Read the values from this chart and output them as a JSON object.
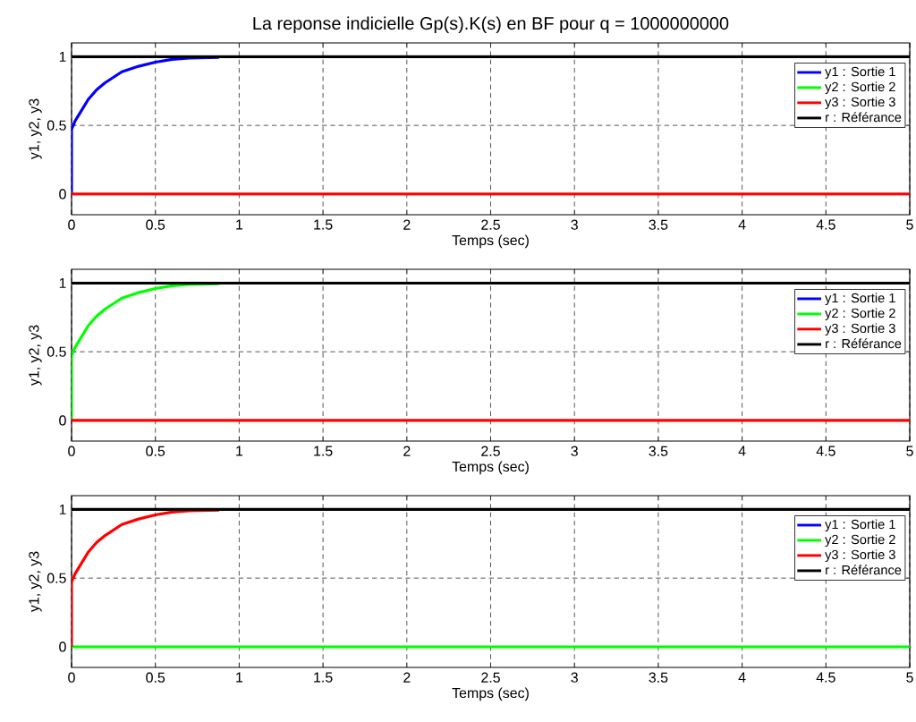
{
  "chart_data": [
    {
      "type": "line",
      "title": "La reponse indicielle Gp(s).K(s) en BF pour q = 1000000000",
      "xlabel": "Temps (sec)",
      "ylabel": "y1, y2, y3",
      "xlim": [
        0,
        5
      ],
      "ylim": [
        -0.15,
        1.1
      ],
      "xticks": [
        0,
        0.5,
        1,
        1.5,
        2,
        2.5,
        3,
        3.5,
        4,
        4.5,
        5
      ],
      "yticks": [
        0,
        0.5,
        1
      ],
      "grid": true,
      "legend": "top right",
      "series": [
        {
          "name": "y1 : Sortie 1",
          "color": "#0000ff",
          "x": [
            0,
            0,
            0.02,
            0.05,
            0.1,
            0.15,
            0.2,
            0.3,
            0.4,
            0.5,
            0.6,
            0.7,
            0.88
          ],
          "values": [
            0,
            0.47,
            0.53,
            0.59,
            0.69,
            0.76,
            0.81,
            0.89,
            0.93,
            0.96,
            0.98,
            0.99,
            0.995
          ]
        },
        {
          "name": "y2 : Sortie 2",
          "color": "#00ff00",
          "values": [
            null,
            null
          ]
        },
        {
          "name": "y3 : Sortie 3",
          "color": "#ff0000",
          "x": [
            0,
            5
          ],
          "values": [
            0,
            0
          ]
        },
        {
          "name": "r : Référance",
          "color": "#000000",
          "line_style": "solid",
          "x": [
            0,
            5
          ],
          "values": [
            1,
            1
          ]
        }
      ]
    },
    {
      "type": "line",
      "xlabel": "Temps (sec)",
      "ylabel": "y1, y2, y3",
      "xlim": [
        0,
        5
      ],
      "ylim": [
        -0.15,
        1.1
      ],
      "xticks": [
        0,
        0.5,
        1,
        1.5,
        2,
        2.5,
        3,
        3.5,
        4,
        4.5,
        5
      ],
      "yticks": [
        0,
        0.5,
        1
      ],
      "grid": true,
      "legend": "top right",
      "series": [
        {
          "name": "y1 : Sortie 1",
          "color": "#0000ff",
          "values": [
            null,
            null
          ]
        },
        {
          "name": "y2 : Sortie 2",
          "color": "#00ff00",
          "x": [
            0,
            0,
            0.02,
            0.05,
            0.1,
            0.15,
            0.2,
            0.3,
            0.4,
            0.5,
            0.6,
            0.7,
            0.88
          ],
          "values": [
            0,
            0.47,
            0.53,
            0.59,
            0.69,
            0.76,
            0.81,
            0.89,
            0.93,
            0.96,
            0.98,
            0.99,
            0.995
          ]
        },
        {
          "name": "y3 : Sortie 3",
          "color": "#ff0000",
          "x": [
            0,
            5
          ],
          "values": [
            0,
            0
          ]
        },
        {
          "name": "r : Référance",
          "color": "#000000",
          "line_style": "solid",
          "x": [
            0,
            5
          ],
          "values": [
            1,
            1
          ]
        }
      ]
    },
    {
      "type": "line",
      "xlabel": "Temps (sec)",
      "ylabel": "y1, y2, y3",
      "xlim": [
        0,
        5
      ],
      "ylim": [
        -0.15,
        1.1
      ],
      "xticks": [
        0,
        0.5,
        1,
        1.5,
        2,
        2.5,
        3,
        3.5,
        4,
        4.5,
        5
      ],
      "yticks": [
        0,
        0.5,
        1
      ],
      "grid": true,
      "legend": "top right",
      "series": [
        {
          "name": "y1 : Sortie 1",
          "color": "#0000ff",
          "values": [
            null,
            null
          ]
        },
        {
          "name": "y2 : Sortie 2",
          "color": "#00ff00",
          "x": [
            0,
            5
          ],
          "values": [
            0,
            0
          ]
        },
        {
          "name": "y3 : Sortie 3",
          "color": "#ff0000",
          "x": [
            0,
            0,
            0.02,
            0.05,
            0.1,
            0.15,
            0.2,
            0.3,
            0.4,
            0.5,
            0.6,
            0.7,
            0.88
          ],
          "values": [
            0,
            0.47,
            0.53,
            0.59,
            0.69,
            0.76,
            0.81,
            0.89,
            0.93,
            0.96,
            0.98,
            0.99,
            0.995
          ]
        },
        {
          "name": "r : Référance",
          "color": "#000000",
          "line_style": "solid",
          "x": [
            0,
            5
          ],
          "values": [
            1,
            1
          ]
        }
      ]
    }
  ]
}
